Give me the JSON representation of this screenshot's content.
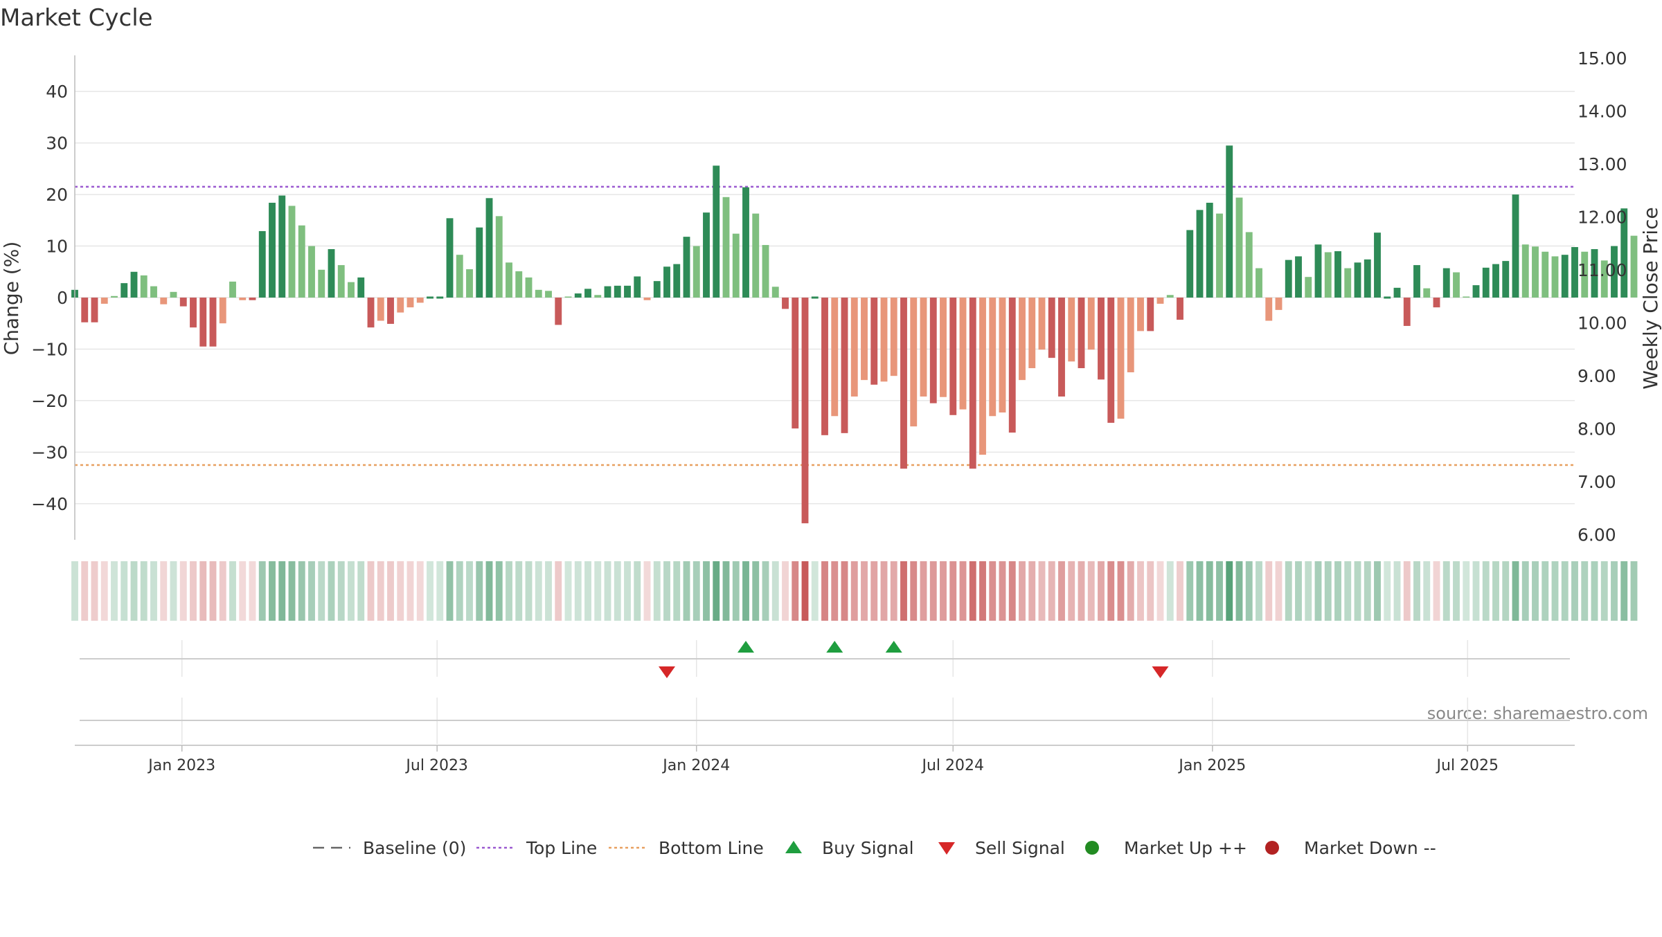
{
  "title": "Market Cycle",
  "source_text": "source: sharemaestro.com",
  "colors": {
    "up_strong": "#2e8b57",
    "up_weak": "#7fbf7f",
    "down_strong": "#c85a5a",
    "down_weak": "#e8967a",
    "top_line": "#9b59d0",
    "bottom_line": "#e8a060",
    "baseline": "#666666",
    "buy": "#1f9e3f",
    "sell": "#d62728",
    "market_up": "#228b22",
    "market_down": "#b22222",
    "grid": "#e6e6e6",
    "axis": "#bbbbbb",
    "text": "#333333"
  },
  "legend": [
    {
      "label": "Baseline (0)",
      "kind": "dashed-line",
      "color": "#666666"
    },
    {
      "label": "Top Line",
      "kind": "dotted-line",
      "color": "#9b59d0"
    },
    {
      "label": "Bottom Line",
      "kind": "dotted-line",
      "color": "#e8a060"
    },
    {
      "label": "Buy Signal",
      "kind": "triangle-up",
      "color": "#1f9e3f"
    },
    {
      "label": "Sell Signal",
      "kind": "triangle-down",
      "color": "#d62728"
    },
    {
      "label": "Market Up ++",
      "kind": "circle",
      "color": "#228b22"
    },
    {
      "label": "Market Down --",
      "kind": "circle",
      "color": "#b22222"
    }
  ],
  "chart_data": {
    "type": "bar",
    "title": "Market Cycle",
    "ylabel": "Change (%)",
    "y2label": "Weekly Close Price",
    "ylim": [
      -47,
      47
    ],
    "y2lim": [
      5.9,
      15.05
    ],
    "yticks": [
      40,
      30,
      20,
      10,
      0,
      -10,
      -20,
      -30,
      -40
    ],
    "ytick_labels": [
      "40",
      "30",
      "20",
      "10",
      "0",
      "−10",
      "−20",
      "−30",
      "−40"
    ],
    "y2ticks": [
      15.0,
      14.0,
      13.0,
      12.0,
      11.0,
      10.0,
      9.0,
      8.0,
      7.0,
      6.0
    ],
    "y2tick_labels": [
      "15.00",
      "14.00",
      "13.00",
      "12.00",
      "11.00",
      "10.00",
      "9.00",
      "8.00",
      "7.00",
      "6.00"
    ],
    "x_start": "2022-10-17",
    "x_end": "2025-09-15",
    "x_ticks": [
      {
        "date": "2023-01-01",
        "label": "Jan 2023"
      },
      {
        "date": "2023-07-01",
        "label": "Jul 2023"
      },
      {
        "date": "2024-01-01",
        "label": "Jan 2024"
      },
      {
        "date": "2024-07-01",
        "label": "Jul 2024"
      },
      {
        "date": "2025-01-01",
        "label": "Jan 2025"
      },
      {
        "date": "2025-07-01",
        "label": "Jul 2025"
      }
    ],
    "top_line": 21.5,
    "bottom_line": -32.5,
    "grid": true,
    "legend_position": "bottom",
    "weekly_change": [
      1.5,
      -4.8,
      -4.8,
      -1.2,
      0.3,
      2.8,
      5.0,
      4.3,
      2.2,
      -1.3,
      1.1,
      -1.7,
      -5.8,
      -9.5,
      -9.5,
      -5.0,
      3.1,
      -0.5,
      -0.5,
      12.9,
      18.4,
      19.8,
      17.8,
      14.0,
      10.0,
      5.4,
      9.4,
      6.3,
      3.0,
      3.9,
      -5.8,
      -4.5,
      -5.1,
      -2.9,
      -1.9,
      -1.0,
      0,
      0,
      15.4,
      8.3,
      5.5,
      13.6,
      19.3,
      15.8,
      6.8,
      5.1,
      3.9,
      1.5,
      1.3,
      -5.3,
      0.2,
      0.8,
      1.7,
      0.5,
      2.2,
      2.3,
      2.3,
      4.1,
      -0.5,
      3.2,
      6.0,
      6.5,
      11.8,
      10.0,
      16.5,
      25.6,
      19.5,
      12.4,
      21.4,
      16.3,
      10.2,
      2.1,
      -2.2,
      -25.4,
      -43.8,
      0,
      -26.7,
      -23.0,
      -26.3,
      -19.2,
      -16.0,
      -16.9,
      -16.3,
      -15.2,
      -33.2,
      -25.0,
      -19.2,
      -20.5,
      -19.3,
      -22.8,
      -21.7,
      -33.2,
      -30.5,
      -23.0,
      -22.3,
      -26.2,
      -16.0,
      -13.7,
      -10.1,
      -11.7,
      -19.2,
      -12.4,
      -13.7,
      -10.1,
      -15.9,
      -24.3,
      -23.5,
      -14.5,
      -6.5,
      -6.5,
      -1.2,
      0.5,
      -4.3,
      13.1,
      17.0,
      18.4,
      16.3,
      29.5,
      19.4,
      12.7,
      5.7,
      -4.5,
      -2.4,
      7.3,
      8.0,
      4.0,
      10.3,
      8.8,
      9.0,
      5.7,
      6.8,
      7.4,
      12.6,
      0,
      1.9,
      -5.5,
      6.3,
      1.8,
      -1.9,
      5.7,
      4.9,
      0.2,
      2.4,
      5.8,
      6.5,
      7.1,
      20.0,
      10.3,
      9.9,
      8.9,
      8.0,
      8.3,
      9.8,
      8.9,
      9.4,
      7.2,
      10.0,
      17.3,
      12.0
    ],
    "buy_signals": [
      "2024-02-05",
      "2024-04-08",
      "2024-05-20"
    ],
    "sell_signals": [
      "2023-12-11",
      "2024-11-25"
    ],
    "series": [
      {
        "name": "Baseline (0)",
        "values": [
          0
        ]
      },
      {
        "name": "Top Line",
        "values": [
          21.5
        ]
      },
      {
        "name": "Bottom Line",
        "values": [
          -32.5
        ]
      }
    ]
  }
}
